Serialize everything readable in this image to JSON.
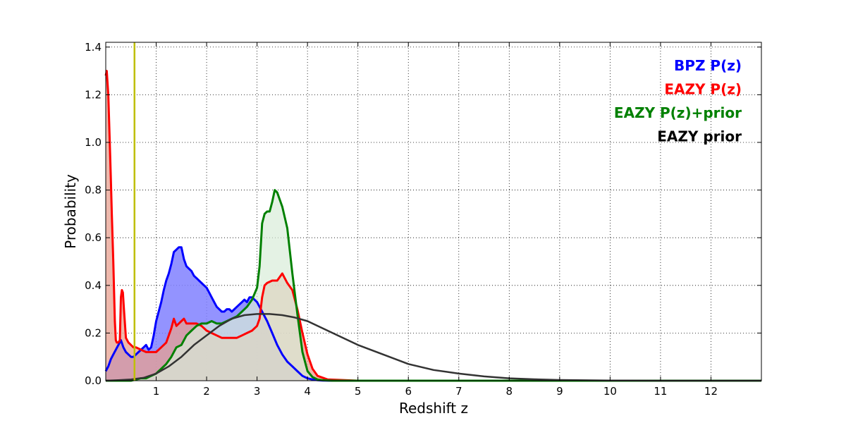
{
  "chart_data": {
    "type": "area",
    "xlabel": "Redshift z",
    "ylabel": "Probability",
    "xlim": [
      0,
      13
    ],
    "ylim": [
      0,
      1.42
    ],
    "x_ticks": [
      "1",
      "2",
      "3",
      "4",
      "5",
      "6",
      "7",
      "8",
      "9",
      "10",
      "11",
      "12"
    ],
    "y_ticks": [
      "0.0",
      "0.2",
      "0.4",
      "0.6",
      "0.8",
      "1.0",
      "1.2",
      "1.4"
    ],
    "grid": true,
    "legend_position": "top-right",
    "reference_line": {
      "x": 0.57,
      "color": "#bfbf00"
    },
    "series": [
      {
        "name": "BPZ P(z)",
        "color": "#0000ff",
        "fill": "#8080ff",
        "x": [
          0,
          0.05,
          0.1,
          0.15,
          0.2,
          0.25,
          0.3,
          0.35,
          0.4,
          0.45,
          0.5,
          0.55,
          0.6,
          0.65,
          0.7,
          0.75,
          0.8,
          0.85,
          0.9,
          0.95,
          1.0,
          1.05,
          1.1,
          1.15,
          1.2,
          1.25,
          1.3,
          1.35,
          1.4,
          1.45,
          1.5,
          1.55,
          1.6,
          1.65,
          1.7,
          1.75,
          1.8,
          1.85,
          1.9,
          1.95,
          2.0,
          2.05,
          2.1,
          2.15,
          2.2,
          2.25,
          2.3,
          2.35,
          2.4,
          2.45,
          2.5,
          2.55,
          2.6,
          2.65,
          2.7,
          2.75,
          2.8,
          2.85,
          2.9,
          2.95,
          3.0,
          3.05,
          3.1,
          3.2,
          3.3,
          3.4,
          3.5,
          3.6,
          3.7,
          3.8,
          3.9,
          4.0,
          4.1,
          4.2,
          4.3,
          4.5,
          5.0,
          6.0,
          8.0,
          10.0,
          12.0,
          13.0
        ],
        "y": [
          0.04,
          0.06,
          0.09,
          0.11,
          0.13,
          0.15,
          0.17,
          0.14,
          0.12,
          0.11,
          0.1,
          0.1,
          0.11,
          0.12,
          0.13,
          0.14,
          0.15,
          0.13,
          0.14,
          0.19,
          0.25,
          0.29,
          0.33,
          0.38,
          0.42,
          0.45,
          0.49,
          0.54,
          0.55,
          0.56,
          0.56,
          0.51,
          0.48,
          0.47,
          0.46,
          0.44,
          0.43,
          0.42,
          0.41,
          0.4,
          0.39,
          0.37,
          0.35,
          0.33,
          0.31,
          0.3,
          0.29,
          0.29,
          0.3,
          0.3,
          0.29,
          0.3,
          0.31,
          0.32,
          0.33,
          0.34,
          0.33,
          0.35,
          0.35,
          0.34,
          0.33,
          0.31,
          0.29,
          0.25,
          0.2,
          0.15,
          0.11,
          0.08,
          0.06,
          0.04,
          0.02,
          0.01,
          0.005,
          0.002,
          0.001,
          0.0,
          0.0,
          0.0,
          0.0,
          0.0,
          0.0,
          0.0
        ]
      },
      {
        "name": "EAZY P(z)",
        "color": "#ff0000",
        "fill": "#e8a090",
        "x": [
          0,
          0.02,
          0.05,
          0.08,
          0.1,
          0.12,
          0.15,
          0.18,
          0.2,
          0.22,
          0.25,
          0.28,
          0.3,
          0.32,
          0.34,
          0.36,
          0.4,
          0.45,
          0.5,
          0.55,
          0.6,
          0.7,
          0.8,
          0.9,
          1.0,
          1.1,
          1.2,
          1.3,
          1.35,
          1.4,
          1.45,
          1.5,
          1.55,
          1.6,
          1.7,
          1.8,
          1.9,
          2.0,
          2.1,
          2.2,
          2.3,
          2.4,
          2.5,
          2.6,
          2.7,
          2.8,
          2.9,
          3.0,
          3.05,
          3.1,
          3.15,
          3.2,
          3.3,
          3.4,
          3.5,
          3.6,
          3.7,
          3.8,
          3.9,
          4.0,
          4.1,
          4.2,
          4.4,
          5.0,
          8.0,
          13.0
        ],
        "y": [
          1.28,
          1.3,
          1.2,
          1.0,
          0.85,
          0.7,
          0.5,
          0.25,
          0.17,
          0.16,
          0.16,
          0.17,
          0.35,
          0.38,
          0.37,
          0.3,
          0.18,
          0.16,
          0.15,
          0.14,
          0.14,
          0.13,
          0.12,
          0.12,
          0.12,
          0.14,
          0.16,
          0.22,
          0.26,
          0.23,
          0.24,
          0.25,
          0.26,
          0.24,
          0.24,
          0.24,
          0.23,
          0.21,
          0.2,
          0.19,
          0.18,
          0.18,
          0.18,
          0.18,
          0.19,
          0.2,
          0.21,
          0.23,
          0.26,
          0.35,
          0.4,
          0.41,
          0.42,
          0.42,
          0.45,
          0.41,
          0.38,
          0.3,
          0.2,
          0.11,
          0.05,
          0.02,
          0.005,
          0.0,
          0.0,
          0.0
        ]
      },
      {
        "name": "EAZY P(z)+prior",
        "color": "#008000",
        "fill": "#d8ecd8",
        "x": [
          0,
          0.5,
          0.7,
          0.8,
          0.9,
          1.0,
          1.1,
          1.2,
          1.3,
          1.4,
          1.5,
          1.6,
          1.7,
          1.8,
          1.9,
          2.0,
          2.1,
          2.2,
          2.3,
          2.4,
          2.5,
          2.6,
          2.7,
          2.8,
          2.9,
          3.0,
          3.05,
          3.1,
          3.15,
          3.2,
          3.25,
          3.3,
          3.35,
          3.4,
          3.5,
          3.6,
          3.7,
          3.8,
          3.9,
          4.0,
          4.1,
          4.2,
          4.3,
          4.5,
          5.0,
          8.0,
          13.0
        ],
        "y": [
          0.0,
          0.0,
          0.01,
          0.01,
          0.02,
          0.03,
          0.05,
          0.07,
          0.1,
          0.14,
          0.15,
          0.19,
          0.21,
          0.23,
          0.24,
          0.24,
          0.25,
          0.24,
          0.24,
          0.25,
          0.26,
          0.27,
          0.29,
          0.31,
          0.34,
          0.39,
          0.48,
          0.66,
          0.7,
          0.71,
          0.71,
          0.75,
          0.8,
          0.79,
          0.73,
          0.64,
          0.45,
          0.28,
          0.12,
          0.04,
          0.015,
          0.005,
          0.002,
          0.0,
          0.0,
          0.0,
          0.0
        ]
      },
      {
        "name": "EAZY prior",
        "color": "#333333",
        "fill": "none",
        "x": [
          0,
          0.25,
          0.5,
          0.75,
          1.0,
          1.25,
          1.5,
          1.75,
          2.0,
          2.25,
          2.5,
          2.75,
          3.0,
          3.25,
          3.5,
          3.75,
          4.0,
          4.5,
          5.0,
          5.5,
          6.0,
          6.5,
          7.0,
          7.5,
          8.0,
          8.5,
          9.0,
          10.0,
          11.0,
          12.0,
          13.0
        ],
        "y": [
          0.0,
          0.002,
          0.005,
          0.012,
          0.03,
          0.06,
          0.1,
          0.15,
          0.19,
          0.23,
          0.26,
          0.275,
          0.28,
          0.28,
          0.275,
          0.265,
          0.25,
          0.2,
          0.15,
          0.11,
          0.07,
          0.045,
          0.03,
          0.018,
          0.01,
          0.006,
          0.003,
          0.001,
          0.0,
          0.0,
          0.0
        ]
      }
    ]
  }
}
